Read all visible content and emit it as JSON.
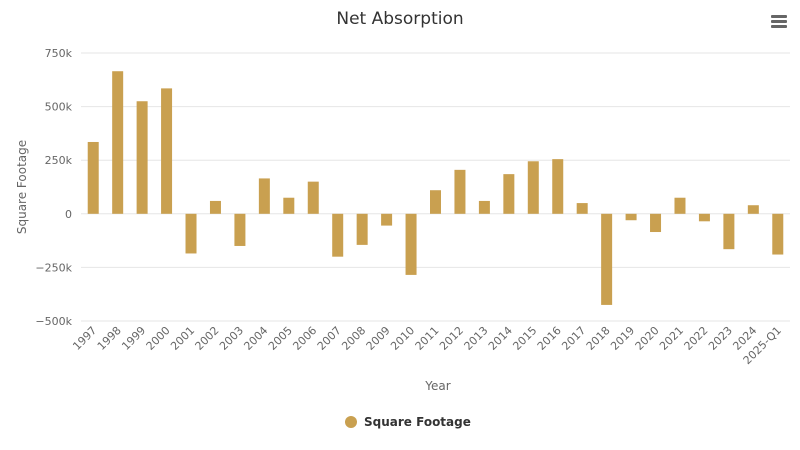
{
  "chart_data": {
    "type": "bar",
    "title": "Net Absorption",
    "xlabel": "Year",
    "ylabel": "Square Footage",
    "categories": [
      "1997",
      "1998",
      "1999",
      "2000",
      "2001",
      "2002",
      "2003",
      "2004",
      "2005",
      "2006",
      "2007",
      "2008",
      "2009",
      "2010",
      "2011",
      "2012",
      "2013",
      "2014",
      "2015",
      "2016",
      "2017",
      "2018",
      "2019",
      "2020",
      "2021",
      "2022",
      "2023",
      "2024",
      "2025-Q1"
    ],
    "series": [
      {
        "name": "Square Footage",
        "color": "#c9a050",
        "values": [
          335000,
          665000,
          525000,
          585000,
          -185000,
          60000,
          -150000,
          165000,
          75000,
          150000,
          -200000,
          -145000,
          -55000,
          -285000,
          110000,
          205000,
          60000,
          185000,
          245000,
          255000,
          50000,
          -425000,
          -30000,
          -85000,
          75000,
          -35000,
          -165000,
          40000,
          -190000
        ]
      }
    ],
    "ylim": [
      -500000,
      750000
    ],
    "yticks": [
      {
        "value": 750000,
        "label": "750k"
      },
      {
        "value": 500000,
        "label": "500k"
      },
      {
        "value": 250000,
        "label": "250k"
      },
      {
        "value": 0,
        "label": "0"
      },
      {
        "value": -250000,
        "label": "−250k"
      },
      {
        "value": -500000,
        "label": "−500k"
      }
    ],
    "grid": true,
    "legend_position": "bottom-center"
  },
  "menu": {
    "icon": "hamburger-menu-icon"
  }
}
